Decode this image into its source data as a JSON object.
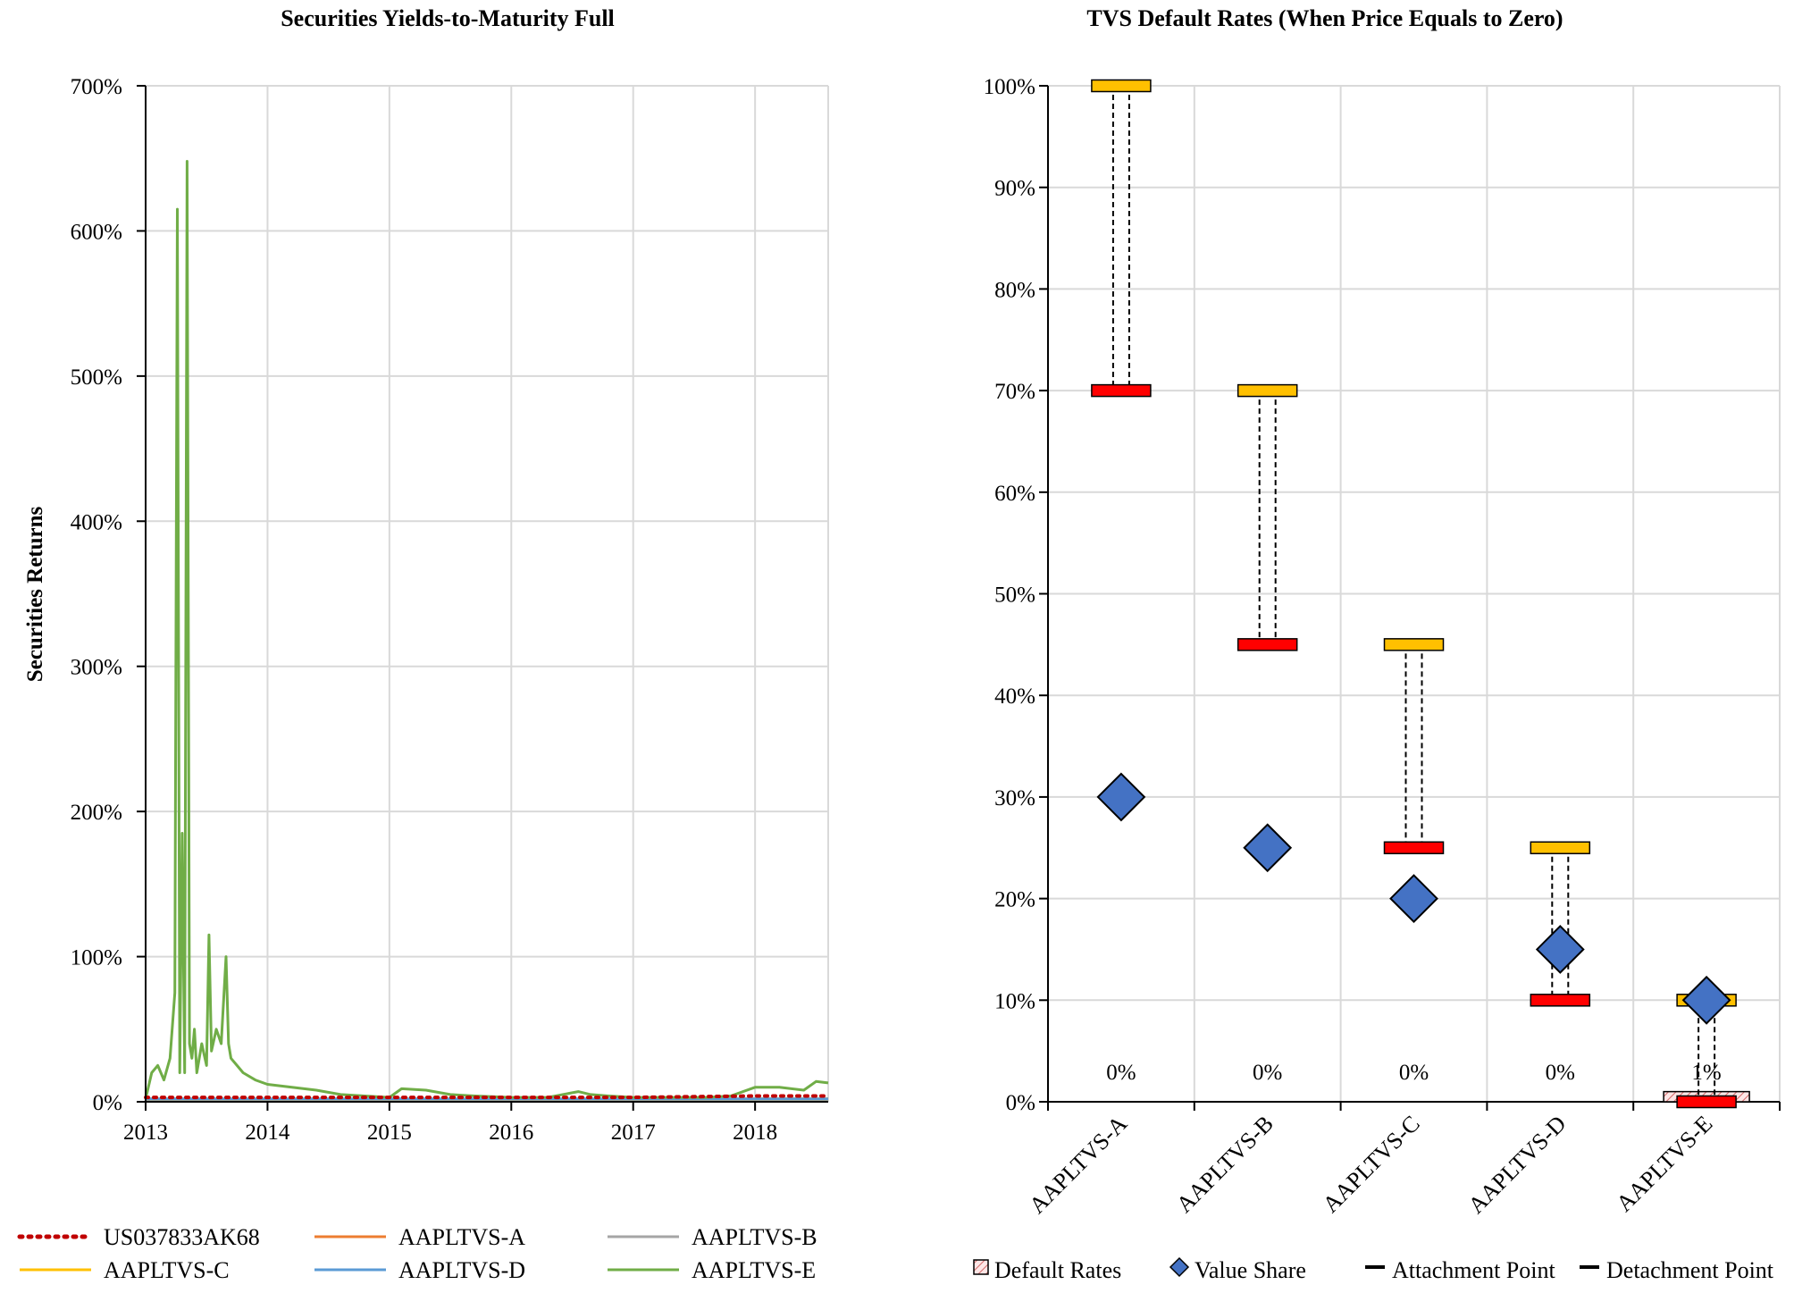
{
  "chart_data": [
    {
      "type": "line",
      "title": "Securities Yields-to-Maturity Full",
      "xlabel": "",
      "ylabel": "Securities Returns",
      "xlim": [
        2013,
        2018.6
      ],
      "ylim": [
        0,
        700
      ],
      "y_unit": "%",
      "x_ticks": [
        "2013",
        "2014",
        "2015",
        "2016",
        "2017",
        "2018"
      ],
      "y_ticks": [
        "0%",
        "100%",
        "200%",
        "300%",
        "400%",
        "500%",
        "600%",
        "700%"
      ],
      "grid": true,
      "legend_position": "bottom",
      "series": [
        {
          "name": "US037833AK68",
          "color": "#c00000",
          "style": "dotted",
          "x": [
            2013,
            2014,
            2015,
            2016,
            2017,
            2018,
            2018.6
          ],
          "y": [
            3,
            3,
            3,
            3,
            3,
            4,
            4
          ]
        },
        {
          "name": "AAPLTVS-A",
          "color": "#ed7d31",
          "style": "solid",
          "x": [
            2013,
            2014,
            2015,
            2016,
            2017,
            2018,
            2018.6
          ],
          "y": [
            1,
            1,
            1,
            1,
            1,
            2,
            2
          ]
        },
        {
          "name": "AAPLTVS-B",
          "color": "#a5a5a5",
          "style": "solid",
          "x": [
            2013,
            2014,
            2015,
            2016,
            2017,
            2018,
            2018.6
          ],
          "y": [
            1,
            1,
            1,
            1,
            1,
            1,
            1
          ]
        },
        {
          "name": "AAPLTVS-C",
          "color": "#ffc000",
          "style": "solid",
          "x": [
            2013,
            2014,
            2015,
            2016,
            2017,
            2018,
            2018.6
          ],
          "y": [
            2,
            2,
            2,
            2,
            2,
            2,
            2
          ]
        },
        {
          "name": "AAPLTVS-D",
          "color": "#5b9bd5",
          "style": "solid",
          "x": [
            2013,
            2014,
            2015,
            2016,
            2017,
            2018,
            2018.6
          ],
          "y": [
            2,
            2,
            2,
            2,
            2,
            2,
            2
          ]
        },
        {
          "name": "AAPLTVS-E",
          "color": "#70ad47",
          "style": "solid",
          "x": [
            2013,
            2013.05,
            2013.1,
            2013.15,
            2013.2,
            2013.24,
            2013.26,
            2013.28,
            2013.3,
            2013.32,
            2013.34,
            2013.36,
            2013.38,
            2013.4,
            2013.42,
            2013.46,
            2013.5,
            2013.52,
            2013.54,
            2013.58,
            2013.62,
            2013.66,
            2013.68,
            2013.7,
            2013.75,
            2013.8,
            2013.9,
            2014,
            2014.2,
            2014.4,
            2014.6,
            2014.8,
            2015,
            2015.1,
            2015.3,
            2015.5,
            2015.7,
            2016,
            2016.3,
            2016.55,
            2016.65,
            2016.8,
            2017,
            2017.3,
            2017.6,
            2017.8,
            2018,
            2018.2,
            2018.4,
            2018.5,
            2018.6
          ],
          "y": [
            2,
            20,
            25,
            15,
            30,
            75,
            615,
            20,
            185,
            20,
            648,
            40,
            30,
            50,
            20,
            40,
            25,
            115,
            35,
            50,
            40,
            100,
            40,
            30,
            25,
            20,
            15,
            12,
            10,
            8,
            5,
            4,
            3,
            9,
            8,
            5,
            4,
            3,
            3,
            7,
            5,
            4,
            3,
            3,
            3,
            4,
            10,
            10,
            8,
            14,
            13
          ]
        }
      ]
    },
    {
      "type": "range",
      "title": "TVS Default Rates (When Price Equals to Zero)",
      "xlabel": "",
      "ylabel": "",
      "ylim": [
        0,
        100
      ],
      "y_unit": "%",
      "y_ticks": [
        "0%",
        "10%",
        "20%",
        "30%",
        "40%",
        "50%",
        "60%",
        "70%",
        "80%",
        "90%",
        "100%"
      ],
      "grid": true,
      "legend_position": "bottom",
      "categories": [
        "AAPLTVS-A",
        "AAPLTVS-B",
        "AAPLTVS-C",
        "AAPLTVS-D",
        "AAPLTVS-E"
      ],
      "default_rates": [
        0,
        0,
        0,
        0,
        1
      ],
      "default_rate_labels": [
        "0%",
        "0%",
        "0%",
        "0%",
        "1%"
      ],
      "value_share": [
        30,
        25,
        20,
        15,
        10
      ],
      "attachment_point": [
        70,
        45,
        25,
        10,
        0
      ],
      "detachment_point": [
        100,
        70,
        45,
        25,
        10
      ],
      "legend": [
        "Default Rates",
        "Value Share",
        "Attachment Point",
        "Detachment Point"
      ],
      "colors": {
        "value_share": "#4472c4",
        "attachment": "#ff0000",
        "detachment": "#ffc000",
        "default_rates": "#fce4e4"
      }
    }
  ]
}
